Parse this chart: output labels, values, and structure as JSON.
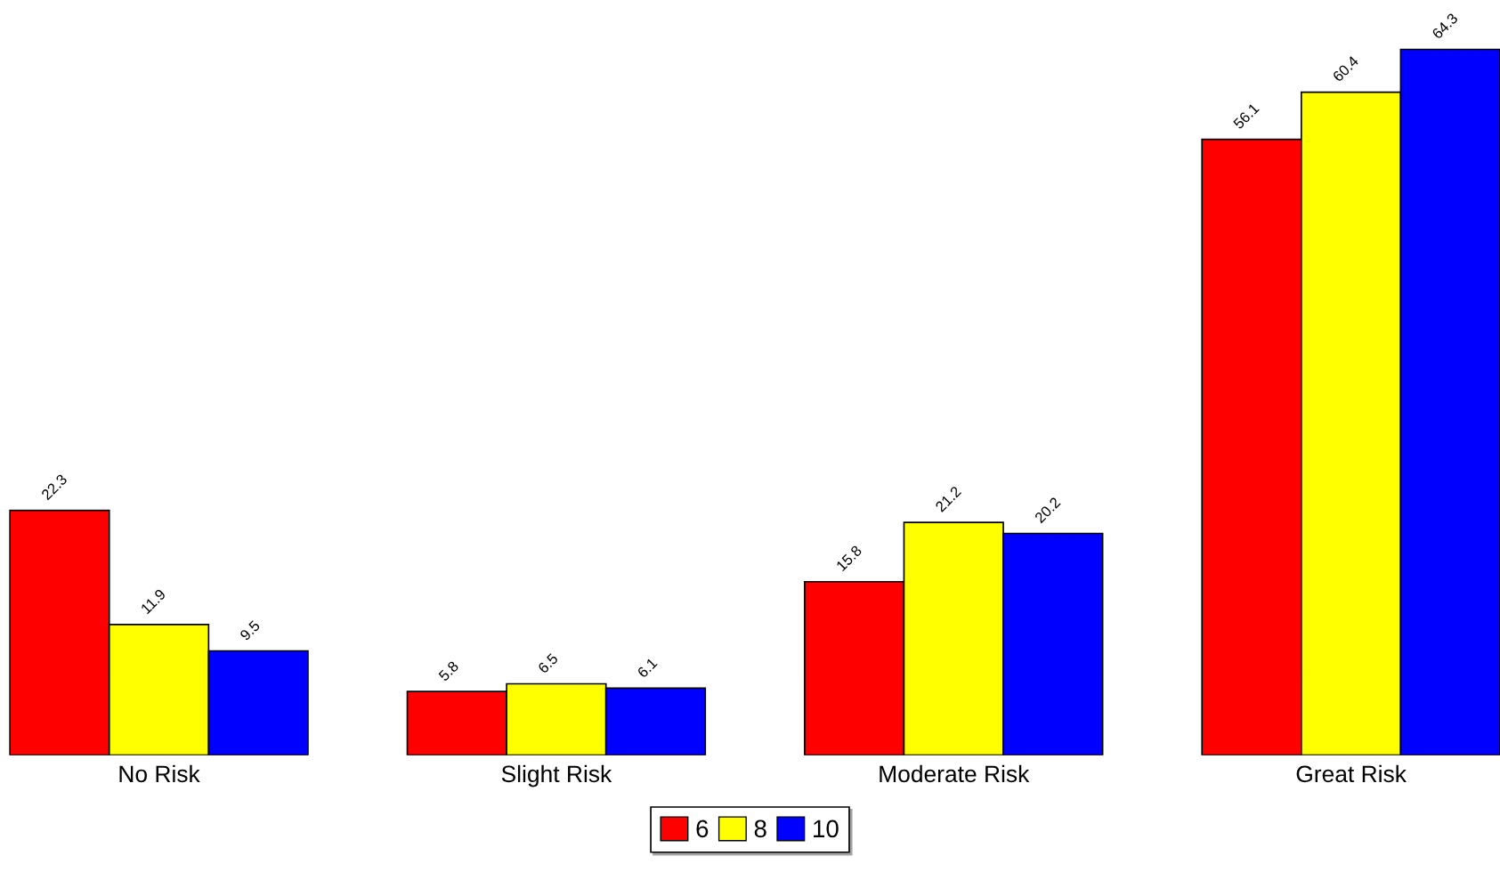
{
  "chart_data": {
    "type": "bar",
    "categories": [
      "No Risk",
      "Slight Risk",
      "Moderate Risk",
      "Great Risk"
    ],
    "series": [
      {
        "name": "6",
        "color": "#ff0000",
        "values": [
          22.3,
          5.8,
          15.8,
          56.1
        ]
      },
      {
        "name": "8",
        "color": "#ffff00",
        "values": [
          11.9,
          6.5,
          21.2,
          60.4
        ]
      },
      {
        "name": "10",
        "color": "#0000ff",
        "values": [
          9.5,
          6.1,
          20.2,
          64.3
        ]
      }
    ],
    "data_labels": true,
    "legend": "bottom",
    "grid": false
  }
}
